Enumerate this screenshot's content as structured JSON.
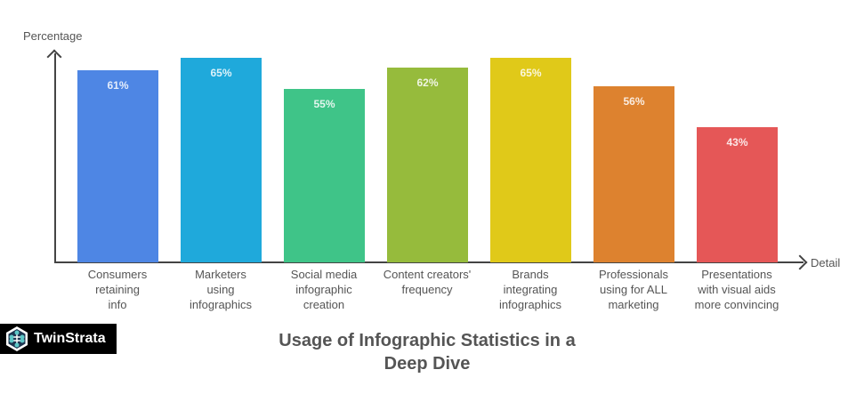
{
  "chart_data": {
    "type": "bar",
    "title": "Usage of Infographic Statistics in a Deep Dive",
    "xlabel": "Detail",
    "ylabel": "Percentage",
    "ylim": [
      0,
      65
    ],
    "grid": false,
    "legend": null,
    "categories": [
      "Consumers retaining info",
      "Marketers using infographics",
      "Social media infographic creation",
      "Content creators' frequency",
      "Brands integrating infographics",
      "Professionals using for ALL marketing",
      "Presentations with visual aids more convincing"
    ],
    "values": [
      61,
      65,
      55,
      62,
      65,
      56,
      43
    ],
    "value_labels": [
      "61%",
      "65%",
      "55%",
      "62%",
      "65%",
      "56%",
      "43%"
    ],
    "colors": [
      "#4e86e4",
      "#1fa9db",
      "#3fc488",
      "#96bb3c",
      "#e0c919",
      "#dd822f",
      "#e55757"
    ]
  },
  "labels": {
    "ylabel": "Percentage",
    "xlabel": "Detail",
    "title_line1": "Usage of Infographic Statistics in a",
    "title_line2": "Deep Dive",
    "cats": [
      "Consumers\nretaining\ninfo",
      "Marketers\nusing\ninfographics",
      "Social media\ninfographic\ncreation",
      "Content creators'\nfrequency",
      "Brands\nintegrating\ninfographics",
      "Professionals\nusing for ALL\nmarketing",
      "Presentations\nwith visual aids\nmore convincing"
    ]
  },
  "logo": {
    "text": "TwinStrata",
    "icon": "network-hexagon-icon"
  }
}
